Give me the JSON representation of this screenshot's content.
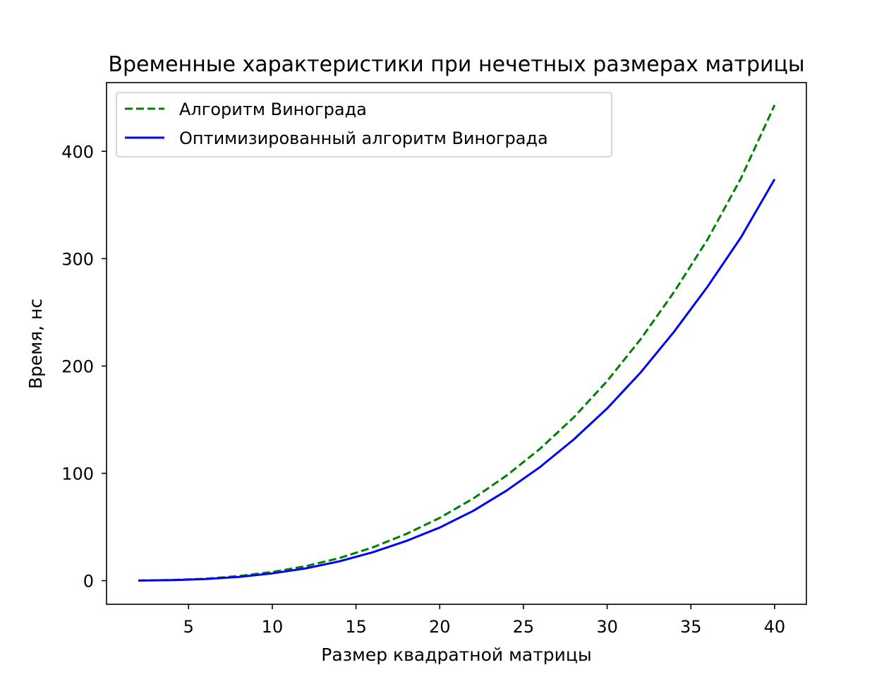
{
  "chart_data": {
    "type": "line",
    "title": "Временные характеристики при нечетных размерах матрицы",
    "xlabel": "Размер квадратной матрицы",
    "ylabel": "Время, нс",
    "xlim": [
      0.1,
      41.9
    ],
    "ylim": [
      -22,
      464
    ],
    "xticks": [
      5,
      10,
      15,
      20,
      25,
      30,
      35,
      40
    ],
    "yticks": [
      0,
      100,
      200,
      300,
      400
    ],
    "grid": false,
    "legend_position": "top-left",
    "x": [
      2,
      4,
      6,
      8,
      10,
      12,
      14,
      16,
      18,
      20,
      22,
      24,
      26,
      28,
      30,
      32,
      34,
      36,
      38,
      40
    ],
    "series": [
      {
        "name": "Алгоритм Винограда",
        "color": "#008000",
        "style": "dashed",
        "values": [
          0.1,
          0.6,
          1.8,
          4.3,
          8.1,
          13.5,
          21,
          31,
          43.5,
          58.5,
          76.5,
          98,
          123,
          152,
          186,
          225,
          269,
          318,
          375,
          443
        ]
      },
      {
        "name": "Оптимизированный алгоритм Винограда",
        "color": "#0000ff",
        "style": "solid",
        "values": [
          0.1,
          0.5,
          1.5,
          3.5,
          6.8,
          11.5,
          18,
          26.5,
          37,
          49.5,
          65,
          84,
          106,
          131.5,
          160.5,
          194,
          232,
          274,
          320,
          374
        ]
      }
    ]
  }
}
